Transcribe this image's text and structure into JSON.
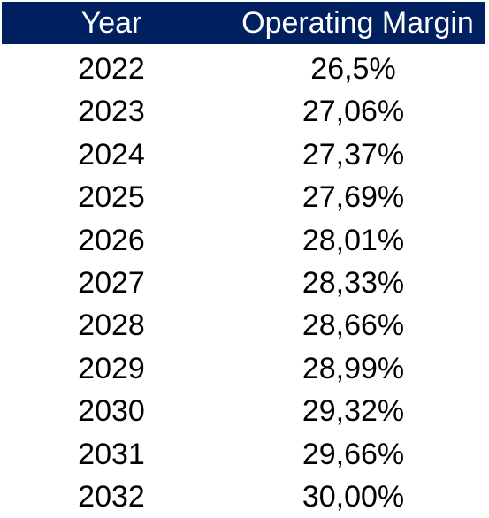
{
  "chart_data": {
    "type": "table",
    "columns": [
      "Year",
      "Operating Margin"
    ],
    "rows": [
      {
        "year": "2022",
        "operating_margin": "26,5%"
      },
      {
        "year": "2023",
        "operating_margin": "27,06%"
      },
      {
        "year": "2024",
        "operating_margin": "27,37%"
      },
      {
        "year": "2025",
        "operating_margin": "27,69%"
      },
      {
        "year": "2026",
        "operating_margin": "28,01%"
      },
      {
        "year": "2027",
        "operating_margin": "28,33%"
      },
      {
        "year": "2028",
        "operating_margin": "28,66%"
      },
      {
        "year": "2029",
        "operating_margin": "28,99%"
      },
      {
        "year": "2030",
        "operating_margin": "29,32%"
      },
      {
        "year": "2031",
        "operating_margin": "29,66%"
      },
      {
        "year": "2032",
        "operating_margin": "30,00%"
      }
    ],
    "header_color": "#002060",
    "header_text_color": "#ffffff"
  }
}
